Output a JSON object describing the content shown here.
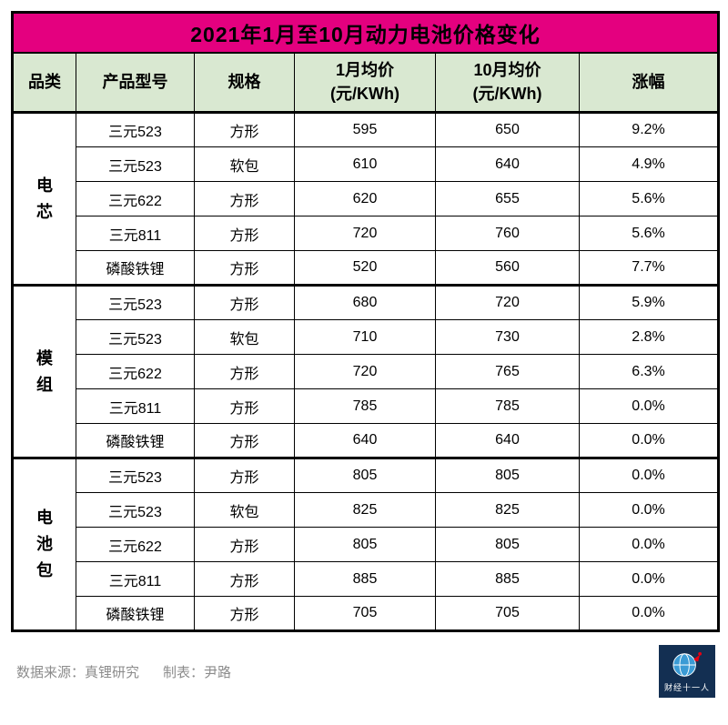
{
  "chart_data": {
    "type": "table",
    "title": "2021年1月至10月动力电池价格变化",
    "columns": [
      "品类",
      "产品型号",
      "规格",
      "1月均价(元/KWh)",
      "10月均价(元/KWh)",
      "涨幅"
    ],
    "header": {
      "category": "品类",
      "model": "产品型号",
      "spec": "规格",
      "jan_line1": "1月均价",
      "jan_line2": "(元/KWh)",
      "oct_line1": "10月均价",
      "oct_line2": "(元/KWh)",
      "change": "涨幅"
    },
    "groups": [
      {
        "category": "电芯",
        "rows": [
          [
            "三元523",
            "方形",
            "595",
            "650",
            "9.2%"
          ],
          [
            "三元523",
            "软包",
            "610",
            "640",
            "4.9%"
          ],
          [
            "三元622",
            "方形",
            "620",
            "655",
            "5.6%"
          ],
          [
            "三元811",
            "方形",
            "720",
            "760",
            "5.6%"
          ],
          [
            "磷酸铁锂",
            "方形",
            "520",
            "560",
            "7.7%"
          ]
        ]
      },
      {
        "category": "模组",
        "rows": [
          [
            "三元523",
            "方形",
            "680",
            "720",
            "5.9%"
          ],
          [
            "三元523",
            "软包",
            "710",
            "730",
            "2.8%"
          ],
          [
            "三元622",
            "方形",
            "720",
            "765",
            "6.3%"
          ],
          [
            "三元811",
            "方形",
            "785",
            "785",
            "0.0%"
          ],
          [
            "磷酸铁锂",
            "方形",
            "640",
            "640",
            "0.0%"
          ]
        ]
      },
      {
        "category": "电池包",
        "rows": [
          [
            "三元523",
            "方形",
            "805",
            "805",
            "0.0%"
          ],
          [
            "三元523",
            "软包",
            "825",
            "825",
            "0.0%"
          ],
          [
            "三元622",
            "方形",
            "805",
            "805",
            "0.0%"
          ],
          [
            "三元811",
            "方形",
            "885",
            "885",
            "0.0%"
          ],
          [
            "磷酸铁锂",
            "方形",
            "705",
            "705",
            "0.0%"
          ]
        ]
      }
    ]
  },
  "footer": {
    "source": "数据来源：真锂研究",
    "credit": "制表：尹路"
  },
  "logo": {
    "name": "财经十一人",
    "icon": "globe-icon"
  },
  "colors": {
    "title_bg": "#E4007F",
    "header_bg": "#D9E8D1",
    "border": "#000000",
    "footer_text": "#8C8C8C",
    "logo_bg": "#132F52",
    "logo_globe": "#3B9BD5",
    "logo_accent": "#E60012"
  }
}
